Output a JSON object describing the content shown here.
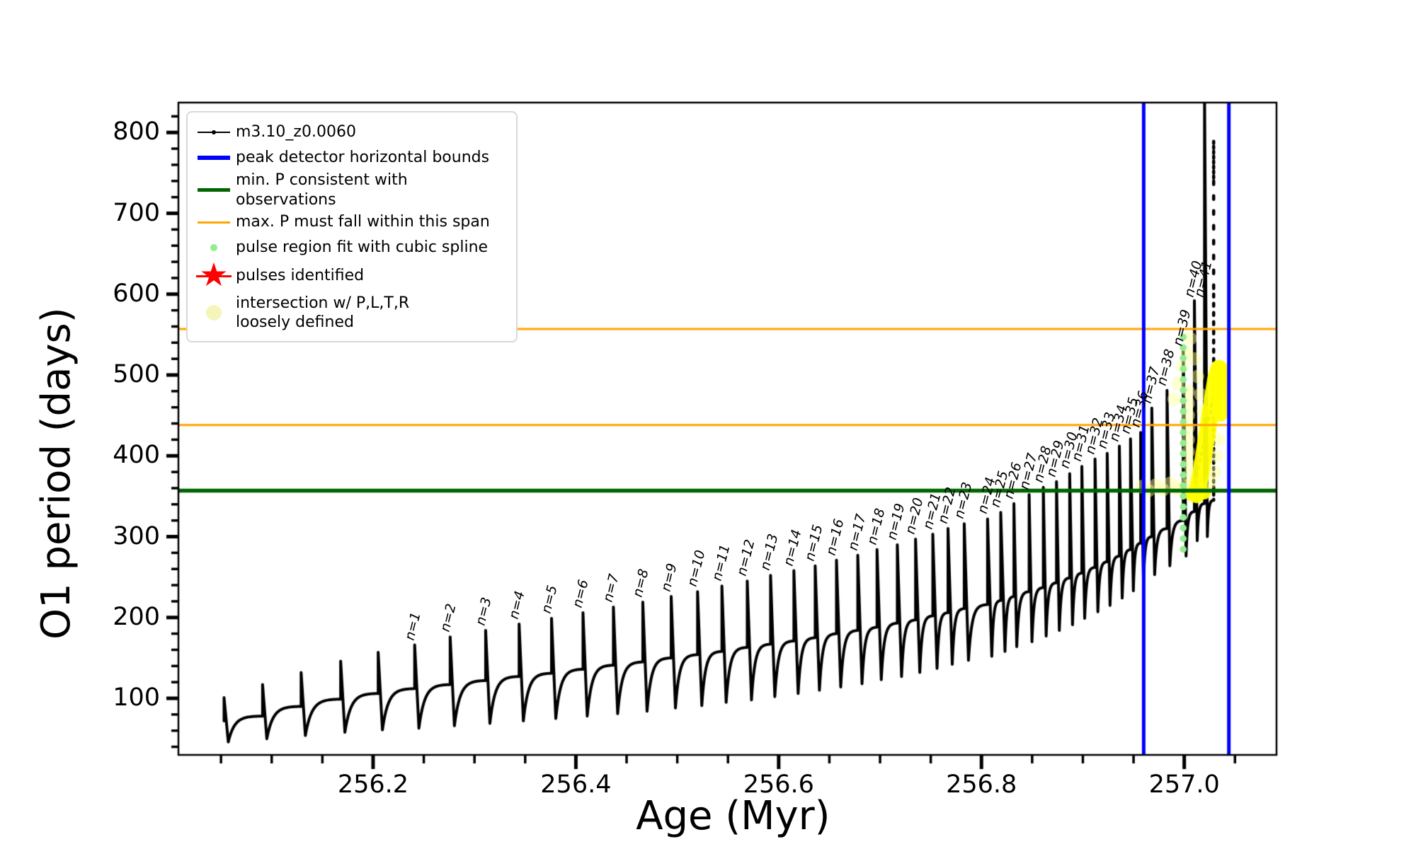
{
  "axes": {
    "xlabel": "Age (Myr)",
    "ylabel": "O1 period (days)",
    "xlim": [
      256.008,
      257.091
    ],
    "ylim": [
      30,
      837
    ],
    "x_major_ticks": [
      256.2,
      256.4,
      256.6,
      256.8,
      257.0
    ],
    "x_tick_labels": [
      "256.2",
      "256.4",
      "256.6",
      "256.8",
      "257.0"
    ],
    "x_minor_step": 0.05,
    "y_major_ticks": [
      100,
      200,
      300,
      400,
      500,
      600,
      700,
      800
    ],
    "y_tick_labels": [
      "100",
      "200",
      "300",
      "400",
      "500",
      "600",
      "700",
      "800"
    ],
    "y_minor_step": 20,
    "grid": "off",
    "legend_position": "upper left"
  },
  "legend": {
    "items": [
      {
        "label": "m3.10_z0.0060",
        "marker": "line-dot",
        "color": "#000000"
      },
      {
        "label": "peak detector horizontal bounds",
        "marker": "line",
        "color": "#0000ff"
      },
      {
        "label": "min. P consistent with observations",
        "marker": "line",
        "color": "#006400"
      },
      {
        "label": "max. P must fall within this span",
        "marker": "line",
        "color": "#ffa500"
      },
      {
        "label": "pulse region fit with cubic spline",
        "marker": "dot",
        "color": "#90ee90"
      },
      {
        "label": "pulses identified",
        "marker": "star",
        "color": "#ff0000"
      },
      {
        "label": "intersection w/ P,L,T,R\nloosely defined",
        "marker": "dot-large",
        "color": "#f7f7bb"
      }
    ]
  },
  "chart_data": {
    "type": "line",
    "series_name": "m3.10_z0.0060",
    "xlabel": "Age (Myr)",
    "ylabel": "O1 period (days)",
    "pulse_curve_comment": "thermal-pulse sawtooth: each pulse = sharp spike at age to peak, drop to dip, concave recovery to next shoulder",
    "pulses": [
      {
        "label": null,
        "age": 256.053,
        "peak": 101,
        "shoulder": 72,
        "dip": 46
      },
      {
        "label": null,
        "age": 256.091,
        "peak": 117,
        "shoulder": 78,
        "dip": 50
      },
      {
        "label": null,
        "age": 256.129,
        "peak": 132,
        "shoulder": 90,
        "dip": 54
      },
      {
        "label": null,
        "age": 256.168,
        "peak": 146,
        "shoulder": 99,
        "dip": 58
      },
      {
        "label": null,
        "age": 256.205,
        "peak": 157,
        "shoulder": 106,
        "dip": 61
      },
      {
        "label": "n=1",
        "age": 256.241,
        "peak": 166,
        "shoulder": 112,
        "dip": 63
      },
      {
        "label": "n=2",
        "age": 256.276,
        "peak": 176,
        "shoulder": 117,
        "dip": 66
      },
      {
        "label": "n=3",
        "age": 256.311,
        "peak": 184,
        "shoulder": 122,
        "dip": 69
      },
      {
        "label": "n=4",
        "age": 256.344,
        "peak": 192,
        "shoulder": 127,
        "dip": 72
      },
      {
        "label": "n=5",
        "age": 256.376,
        "peak": 199,
        "shoulder": 131,
        "dip": 75
      },
      {
        "label": "n=6",
        "age": 256.407,
        "peak": 206,
        "shoulder": 136,
        "dip": 78
      },
      {
        "label": "n=7",
        "age": 256.437,
        "peak": 213,
        "shoulder": 141,
        "dip": 81
      },
      {
        "label": "n=8",
        "age": 256.466,
        "peak": 219,
        "shoulder": 145,
        "dip": 84
      },
      {
        "label": "n=9",
        "age": 256.494,
        "peak": 226,
        "shoulder": 150,
        "dip": 88
      },
      {
        "label": "n=10",
        "age": 256.52,
        "peak": 232,
        "shoulder": 154,
        "dip": 91
      },
      {
        "label": "n=11",
        "age": 256.544,
        "peak": 239,
        "shoulder": 158,
        "dip": 95
      },
      {
        "label": "n=12",
        "age": 256.569,
        "peak": 245,
        "shoulder": 163,
        "dip": 98
      },
      {
        "label": "n=13",
        "age": 256.592,
        "peak": 252,
        "shoulder": 167,
        "dip": 102
      },
      {
        "label": "n=14",
        "age": 256.615,
        "peak": 258,
        "shoulder": 171,
        "dip": 106
      },
      {
        "label": "n=15",
        "age": 256.636,
        "peak": 264,
        "shoulder": 175,
        "dip": 110
      },
      {
        "label": "n=16",
        "age": 256.657,
        "peak": 271,
        "shoulder": 180,
        "dip": 114
      },
      {
        "label": "n=17",
        "age": 256.678,
        "peak": 277,
        "shoulder": 184,
        "dip": 118
      },
      {
        "label": "n=18",
        "age": 256.697,
        "peak": 284,
        "shoulder": 188,
        "dip": 123
      },
      {
        "label": "n=19",
        "age": 256.717,
        "peak": 290,
        "shoulder": 193,
        "dip": 127
      },
      {
        "label": "n=20",
        "age": 256.735,
        "peak": 297,
        "shoulder": 197,
        "dip": 132
      },
      {
        "label": "n=21",
        "age": 256.752,
        "peak": 303,
        "shoulder": 202,
        "dip": 137
      },
      {
        "label": "n=22",
        "age": 256.767,
        "peak": 310,
        "shoulder": 206,
        "dip": 142
      },
      {
        "label": "n=23",
        "age": 256.783,
        "peak": 316,
        "shoulder": 211,
        "dip": 147
      },
      {
        "label": "n=24",
        "age": 256.806,
        "peak": 322,
        "shoulder": 216,
        "dip": 152
      },
      {
        "label": "n=25",
        "age": 256.819,
        "peak": 330,
        "shoulder": 221,
        "dip": 158
      },
      {
        "label": "n=26",
        "age": 256.832,
        "peak": 341,
        "shoulder": 226,
        "dip": 164
      },
      {
        "label": "n=27",
        "age": 256.847,
        "peak": 352,
        "shoulder": 232,
        "dip": 170
      },
      {
        "label": "n=28",
        "age": 256.861,
        "peak": 361,
        "shoulder": 237,
        "dip": 177
      },
      {
        "label": "n=29",
        "age": 256.874,
        "peak": 368,
        "shoulder": 243,
        "dip": 184
      },
      {
        "label": "n=30",
        "age": 256.887,
        "peak": 378,
        "shoulder": 249,
        "dip": 191
      },
      {
        "label": "n=31",
        "age": 256.899,
        "peak": 387,
        "shoulder": 255,
        "dip": 199
      },
      {
        "label": "n=32",
        "age": 256.912,
        "peak": 396,
        "shoulder": 262,
        "dip": 207
      },
      {
        "label": "n=33",
        "age": 256.924,
        "peak": 403,
        "shoulder": 269,
        "dip": 215
      },
      {
        "label": "n=34",
        "age": 256.936,
        "peak": 412,
        "shoulder": 276,
        "dip": 224
      },
      {
        "label": "n=35",
        "age": 256.947,
        "peak": 421,
        "shoulder": 284,
        "dip": 233
      },
      {
        "label": "n=36",
        "age": 256.957,
        "peak": 429,
        "shoulder": 292,
        "dip": 243
      },
      {
        "label": "n=37",
        "age": 256.968,
        "peak": 459,
        "shoulder": 300,
        "dip": 253
      },
      {
        "label": "n=38",
        "age": 256.983,
        "peak": 481,
        "shoulder": 310,
        "dip": 264
      },
      {
        "label": "n=39",
        "age": 256.999,
        "peak": 530,
        "shoulder": 320,
        "dip": 276
      },
      {
        "label": "n=40",
        "age": 257.01,
        "peak": 592,
        "shoulder": 331,
        "dip": 295
      },
      {
        "label": "n=41",
        "age": 257.02,
        "peak": 850,
        "shoulder": 341,
        "dip": 300
      },
      {
        "label": null,
        "age": 257.029,
        "peak": null,
        "shoulder": 345,
        "dip": null
      }
    ],
    "final_dotted_column": {
      "age": 257.029,
      "v_top": 789,
      "v_bottom": 345
    },
    "overlays": {
      "blue_vlines_age": [
        256.96,
        257.044
      ],
      "orange_hlines_days": [
        557,
        438
      ],
      "green_hline_days": 357,
      "spline_dots": {
        "age": 256.999,
        "v_top": 547,
        "v_bottom": 275,
        "spacing_px": 15,
        "color": "#90ee90"
      },
      "spline_diagonal": {
        "from": [
          257.008,
          350
        ],
        "to": [
          257.034,
          505
        ]
      },
      "yellow_band": [
        [
          257.012,
          352
        ],
        [
          257.016,
          375
        ],
        [
          257.021,
          415
        ],
        [
          257.026,
          455
        ],
        [
          257.031,
          495
        ],
        [
          257.034,
          508
        ]
      ],
      "yellow_capsule": [
        [
          257.0355,
          452
        ],
        [
          257.0355,
          508
        ]
      ],
      "yellow_foot": [
        [
          257.007,
          352
        ],
        [
          257.02,
          354
        ]
      ],
      "yellow_loose_dots": [
        [
          256.99,
          470
        ],
        [
          256.994,
          490
        ],
        [
          256.998,
          510
        ],
        [
          257.002,
          528
        ],
        [
          257.006,
          545
        ],
        [
          257.01,
          520
        ],
        [
          257.013,
          498
        ],
        [
          257.016,
          476
        ],
        [
          257.019,
          455
        ],
        [
          257.004,
          360
        ],
        [
          257.004,
          375
        ],
        [
          257.004,
          390
        ],
        [
          257.004,
          405
        ],
        [
          257.004,
          420
        ],
        [
          257.004,
          435
        ],
        [
          257.004,
          450
        ],
        [
          257.004,
          465
        ],
        [
          257.004,
          480
        ],
        [
          256.958,
          362
        ],
        [
          256.965,
          357
        ],
        [
          256.972,
          364
        ],
        [
          256.979,
          358
        ],
        [
          256.986,
          366
        ],
        [
          256.993,
          359
        ],
        [
          257.0,
          363
        ],
        [
          257.007,
          357
        ],
        [
          257.013,
          365
        ],
        [
          257.02,
          358
        ],
        [
          257.026,
          368
        ],
        [
          257.03,
          380
        ],
        [
          257.032,
          400
        ],
        [
          257.034,
          420
        ]
      ]
    },
    "colors": {
      "curve": "#000000",
      "peak_bounds": "#0000ff",
      "min_p": "#006400",
      "max_p_span": "#ffa500",
      "spline_fit": "#90ee90",
      "pulses_identified": "#ff0000",
      "intersection": "#ffff00"
    }
  }
}
